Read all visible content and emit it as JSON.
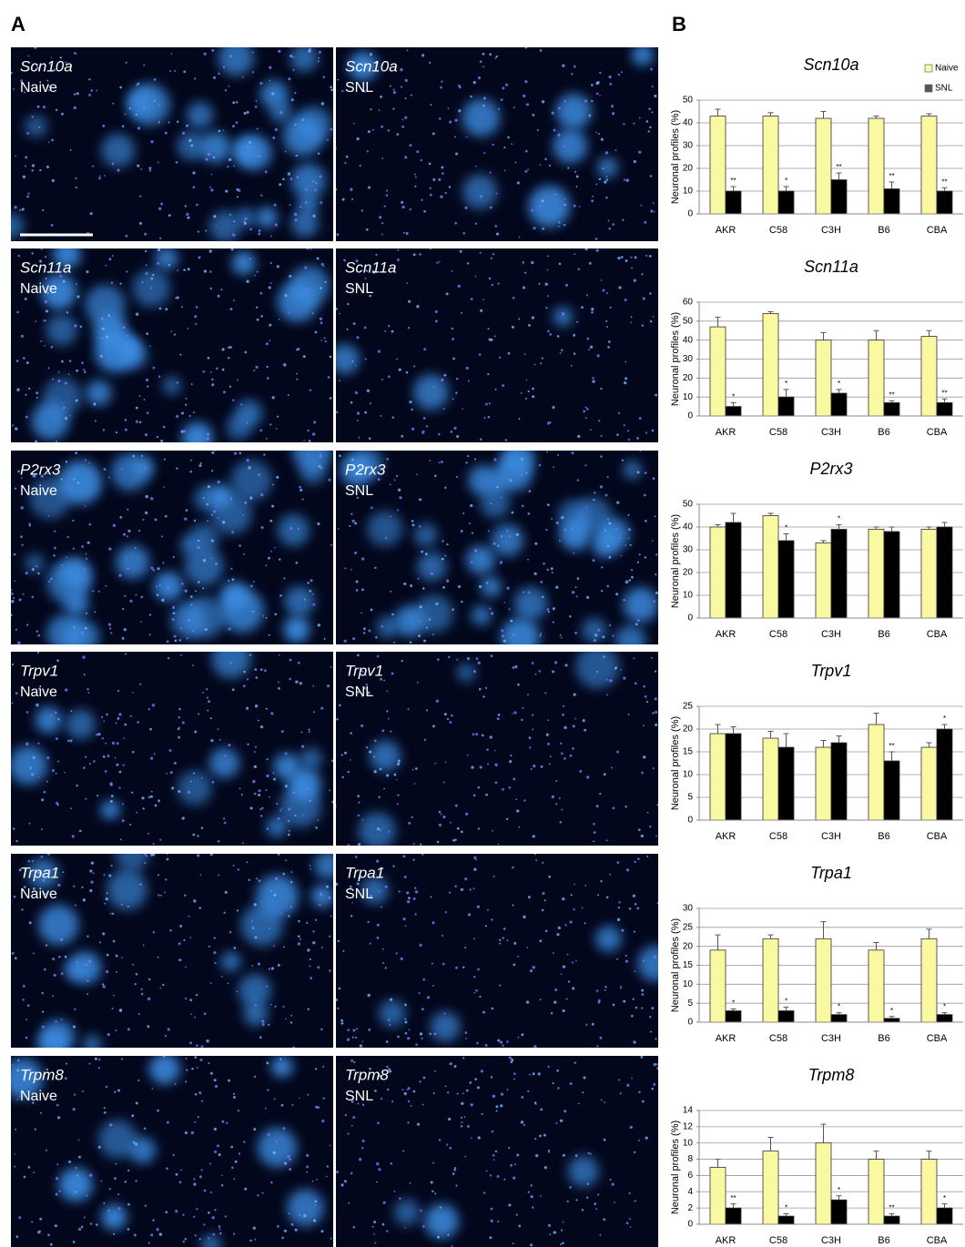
{
  "panel_a": {
    "label": "A",
    "images": [
      {
        "gene": "Scn10a",
        "condition": "Naive"
      },
      {
        "gene": "Scn10a",
        "condition": "SNL"
      },
      {
        "gene": "Scn11a",
        "condition": "Naive"
      },
      {
        "gene": "Scn11a",
        "condition": "SNL"
      },
      {
        "gene": "P2rx3",
        "condition": "Naive"
      },
      {
        "gene": "P2rx3",
        "condition": "SNL"
      },
      {
        "gene": "Trpv1",
        "condition": "Naive"
      },
      {
        "gene": "Trpv1",
        "condition": "SNL"
      },
      {
        "gene": "Trpa1",
        "condition": "Naive"
      },
      {
        "gene": "Trpa1",
        "condition": "SNL"
      },
      {
        "gene": "Trpm8",
        "condition": "Naive"
      },
      {
        "gene": "Trpm8",
        "condition": "SNL"
      }
    ]
  },
  "panel_b": {
    "label": "B"
  },
  "chart_data": [
    {
      "type": "bar",
      "title": "Scn10a",
      "y_label": "Neuronal profiles (%)",
      "categories": [
        "AKR",
        "C58",
        "C3H",
        "B6",
        "CBA"
      ],
      "ylim": [
        0,
        50
      ],
      "yticks": [
        0,
        10,
        20,
        30,
        40,
        50
      ],
      "grid": true,
      "legend": "top-right",
      "series": [
        {
          "name": "Naive",
          "color": "#fbf8a2",
          "values": [
            43,
            43,
            42,
            42,
            43
          ],
          "errors": [
            3,
            1.5,
            3,
            1,
            1
          ],
          "annotations": [
            null,
            null,
            null,
            null,
            null
          ]
        },
        {
          "name": "SNL",
          "color": "#000000",
          "values": [
            10,
            10,
            15,
            11,
            10
          ],
          "errors": [
            2,
            2,
            3,
            3,
            1.5
          ],
          "annotations": [
            "**",
            "*",
            "**",
            "**",
            "**"
          ]
        }
      ]
    },
    {
      "type": "bar",
      "title": "Scn11a",
      "y_label": "Neuronal profiles (%)",
      "categories": [
        "AKR",
        "C58",
        "C3H",
        "B6",
        "CBA"
      ],
      "ylim": [
        0,
        60
      ],
      "yticks": [
        0,
        10,
        20,
        30,
        40,
        50,
        60
      ],
      "grid": true,
      "series": [
        {
          "name": "Naive",
          "color": "#fbf8a2",
          "values": [
            47,
            54,
            40,
            40,
            42
          ],
          "errors": [
            5,
            1,
            4,
            5,
            3
          ],
          "annotations": [
            null,
            null,
            null,
            null,
            null
          ]
        },
        {
          "name": "SNL",
          "color": "#000000",
          "values": [
            5,
            10,
            12,
            7,
            7
          ],
          "errors": [
            2,
            4,
            2,
            1,
            2
          ],
          "annotations": [
            "*",
            "*",
            "*",
            "**",
            "**"
          ]
        }
      ]
    },
    {
      "type": "bar",
      "title": "P2rx3",
      "y_label": "Neuronal profiles (%)",
      "categories": [
        "AKR",
        "C58",
        "C3H",
        "B6",
        "CBA"
      ],
      "ylim": [
        0,
        50
      ],
      "yticks": [
        0,
        10,
        20,
        30,
        40,
        50
      ],
      "grid": true,
      "series": [
        {
          "name": "Naive",
          "color": "#fbf8a2",
          "values": [
            40,
            45,
            33,
            39,
            39
          ],
          "errors": [
            1,
            1,
            1,
            1,
            1
          ],
          "annotations": [
            null,
            null,
            null,
            null,
            null
          ]
        },
        {
          "name": "SNL",
          "color": "#000000",
          "values": [
            42,
            34,
            39,
            38,
            40
          ],
          "errors": [
            4,
            3,
            2,
            2,
            2
          ],
          "annotations": [
            null,
            "*",
            "*",
            null,
            null
          ]
        }
      ]
    },
    {
      "type": "bar",
      "title": "Trpv1",
      "y_label": "Neuronal profiles (%)",
      "categories": [
        "AKR",
        "C58",
        "C3H",
        "B6",
        "CBA"
      ],
      "ylim": [
        0,
        25
      ],
      "yticks": [
        0,
        5,
        10,
        15,
        20,
        25
      ],
      "grid": true,
      "series": [
        {
          "name": "Naive",
          "color": "#fbf8a2",
          "values": [
            19,
            18,
            16,
            21,
            16
          ],
          "errors": [
            2,
            1.5,
            1.5,
            2.5,
            1
          ],
          "annotations": [
            null,
            null,
            null,
            null,
            null
          ]
        },
        {
          "name": "SNL",
          "color": "#000000",
          "values": [
            19,
            16,
            17,
            13,
            20
          ],
          "errors": [
            1.5,
            3,
            1.5,
            2,
            1
          ],
          "annotations": [
            null,
            null,
            null,
            "**",
            "*"
          ]
        }
      ]
    },
    {
      "type": "bar",
      "title": "Trpa1",
      "y_label": "Neuronal profiles (%)",
      "categories": [
        "AKR",
        "C58",
        "C3H",
        "B6",
        "CBA"
      ],
      "ylim": [
        0,
        30
      ],
      "yticks": [
        0,
        5,
        10,
        15,
        20,
        25,
        30
      ],
      "grid": true,
      "series": [
        {
          "name": "Naive",
          "color": "#fbf8a2",
          "values": [
            19,
            22,
            22,
            19,
            22
          ],
          "errors": [
            4,
            1,
            4.5,
            2,
            2.5
          ],
          "annotations": [
            null,
            null,
            null,
            null,
            null
          ]
        },
        {
          "name": "SNL",
          "color": "#000000",
          "values": [
            3,
            3,
            2,
            1,
            2
          ],
          "errors": [
            0.5,
            1,
            0.5,
            0.5,
            0.5
          ],
          "annotations": [
            "*",
            "*",
            "*",
            "*",
            "*"
          ]
        }
      ]
    },
    {
      "type": "bar",
      "title": "Trpm8",
      "y_label": "Neuronal profiles (%)",
      "categories": [
        "AKR",
        "C58",
        "C3H",
        "B6",
        "CBA"
      ],
      "ylim": [
        0,
        14
      ],
      "yticks": [
        0,
        2,
        4,
        6,
        8,
        10,
        12,
        14
      ],
      "grid": true,
      "series": [
        {
          "name": "Naive",
          "color": "#fbf8a2",
          "values": [
            7,
            9,
            10,
            8,
            8
          ],
          "errors": [
            1,
            1.7,
            2.3,
            1,
            1
          ],
          "annotations": [
            null,
            null,
            null,
            null,
            null
          ]
        },
        {
          "name": "SNL",
          "color": "#000000",
          "values": [
            2,
            1,
            3,
            1,
            2
          ],
          "errors": [
            0.5,
            0.3,
            0.5,
            0.3,
            0.5
          ],
          "annotations": [
            "**",
            "*",
            "*",
            "**",
            "*"
          ]
        }
      ]
    }
  ]
}
